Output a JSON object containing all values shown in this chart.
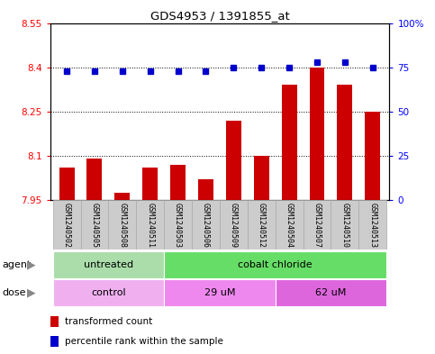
{
  "title": "GDS4953 / 1391855_at",
  "samples": [
    "GSM1240502",
    "GSM1240505",
    "GSM1240508",
    "GSM1240511",
    "GSM1240503",
    "GSM1240506",
    "GSM1240509",
    "GSM1240512",
    "GSM1240504",
    "GSM1240507",
    "GSM1240510",
    "GSM1240513"
  ],
  "red_values": [
    8.06,
    8.09,
    7.975,
    8.06,
    8.07,
    8.02,
    8.22,
    8.1,
    8.34,
    8.4,
    8.34,
    8.25
  ],
  "blue_values": [
    73,
    73,
    73,
    73,
    73,
    73,
    75,
    75,
    75,
    78,
    78,
    75
  ],
  "ylim_left": [
    7.95,
    8.55
  ],
  "ylim_right": [
    0,
    100
  ],
  "yticks_left": [
    7.95,
    8.1,
    8.25,
    8.4,
    8.55
  ],
  "yticks_right": [
    0,
    25,
    50,
    75,
    100
  ],
  "ytick_labels_left": [
    "7.95",
    "8.1",
    "8.25",
    "8.4",
    "8.55"
  ],
  "ytick_labels_right": [
    "0",
    "25",
    "50",
    "75",
    "100%"
  ],
  "agent_groups": [
    {
      "label": "untreated",
      "start": 0,
      "end": 4,
      "color": "#aaddaa"
    },
    {
      "label": "cobalt chloride",
      "start": 4,
      "end": 12,
      "color": "#66dd66"
    }
  ],
  "dose_groups": [
    {
      "label": "control",
      "start": 0,
      "end": 4,
      "color": "#f0b0f0"
    },
    {
      "label": "29 uM",
      "start": 4,
      "end": 8,
      "color": "#ee88ee"
    },
    {
      "label": "62 uM",
      "start": 8,
      "end": 12,
      "color": "#dd66dd"
    }
  ],
  "bar_color": "#cc0000",
  "dot_color": "#0000cc",
  "bar_width": 0.55,
  "base_value": 7.95,
  "sample_box_color": "#cccccc",
  "sample_box_edge": "#aaaaaa"
}
